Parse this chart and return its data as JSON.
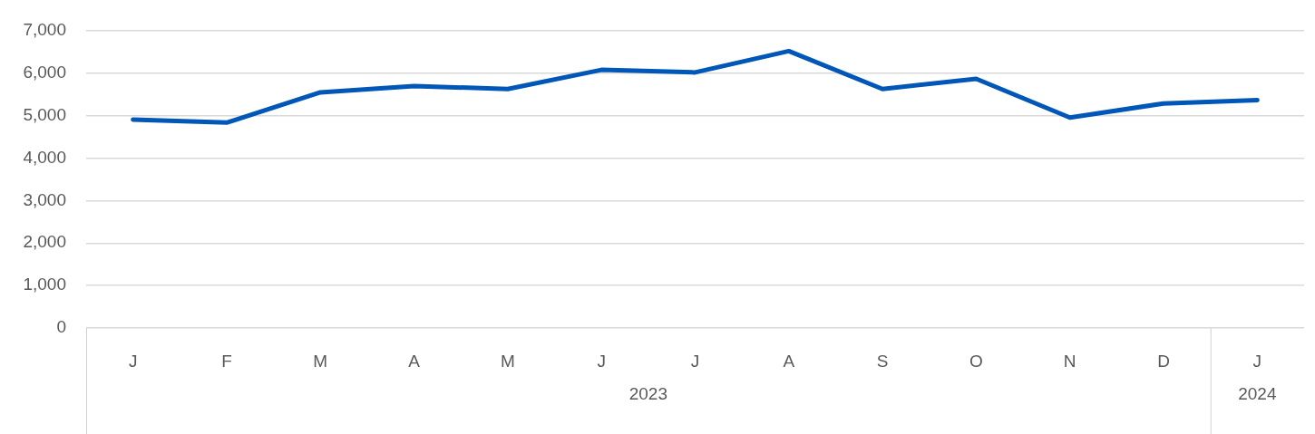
{
  "chart_data": {
    "type": "line",
    "categories": [
      "J",
      "F",
      "M",
      "A",
      "M",
      "J",
      "J",
      "A",
      "S",
      "O",
      "N",
      "D",
      "J"
    ],
    "series": [
      {
        "color": "#0057b8",
        "values": [
          4900,
          4830,
          5540,
          5690,
          5620,
          6070,
          6010,
          6510,
          5620,
          5860,
          4950,
          5280,
          5360
        ]
      }
    ],
    "ylim": [
      0,
      7000
    ],
    "yticks": [
      0,
      {
        "value": 1000,
        "label": "1,000"
      },
      {
        "value": 2000,
        "label": "2,000"
      },
      {
        "value": 3000,
        "label": "3,000"
      },
      {
        "value": 4000,
        "label": "4,000"
      },
      {
        "value": 5000,
        "label": "5,000"
      },
      {
        "value": 6000,
        "label": "6,000"
      },
      {
        "value": 7000,
        "label": "7,000"
      }
    ],
    "grid": "y",
    "legend": false,
    "marker": "none",
    "line_style": "solid",
    "annotations": [
      "2023",
      "2024"
    ]
  }
}
